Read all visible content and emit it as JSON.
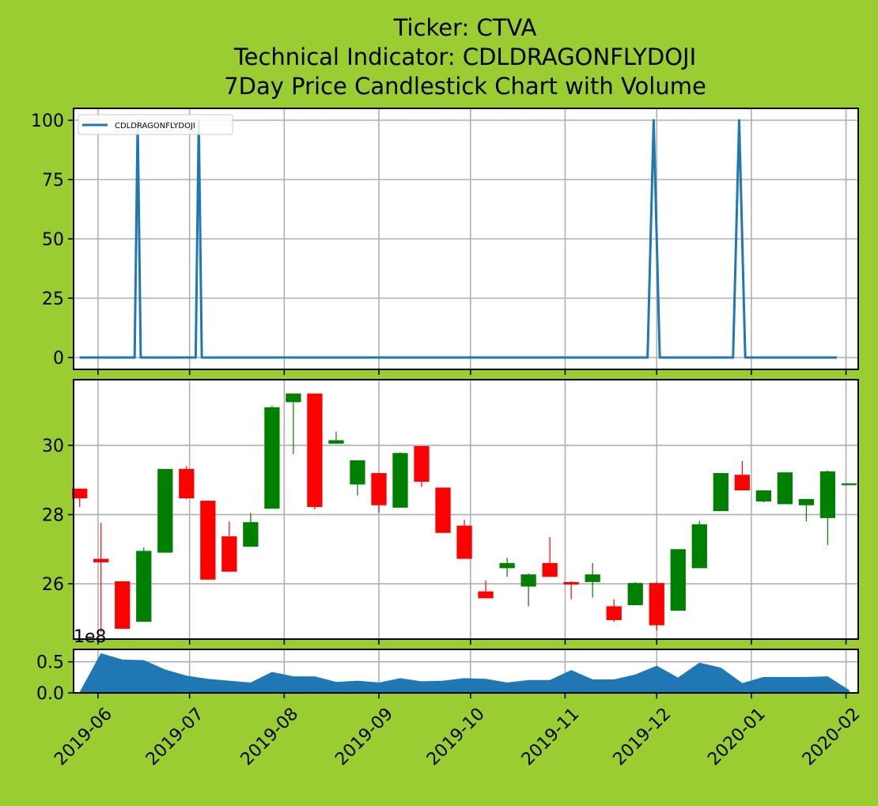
{
  "chart_data": {
    "title_lines": [
      "Ticker: CTVA",
      "Technical Indicator: CDLDRAGONFLYDOJI",
      "7Day Price Candlestick Chart with Volume"
    ],
    "background_color": "#9acd32",
    "x_axis": {
      "type": "date",
      "range": [
        "2019-05-24",
        "2020-02-05"
      ],
      "ticks": [
        "2019-06",
        "2019-07",
        "2019-08",
        "2019-09",
        "2019-10",
        "2019-11",
        "2019-12",
        "2020-01",
        "2020-02"
      ],
      "tick_label_rotation": 45,
      "grid": true
    },
    "panels": [
      {
        "type": "line",
        "name": "indicator",
        "ylim": [
          -5,
          105
        ],
        "yticks": [
          0,
          25,
          50,
          75,
          100
        ],
        "legend": {
          "label": "CDLDRAGONFLYDOJI",
          "position": "top-left"
        },
        "series": [
          {
            "name": "CDLDRAGONFLYDOJI",
            "color": "#1f77b4",
            "points": [
              [
                "2019-05-26",
                0
              ],
              [
                "2019-06-13",
                0
              ],
              [
                "2019-06-14",
                100
              ],
              [
                "2019-06-15",
                0
              ],
              [
                "2019-07-03",
                0
              ],
              [
                "2019-07-04",
                100
              ],
              [
                "2019-07-05",
                0
              ],
              [
                "2019-11-28",
                0
              ],
              [
                "2019-11-30",
                100
              ],
              [
                "2019-12-02",
                0
              ],
              [
                "2019-12-26",
                0
              ],
              [
                "2019-12-28",
                100
              ],
              [
                "2019-12-30",
                0
              ],
              [
                "2020-01-29",
                0
              ]
            ]
          }
        ]
      },
      {
        "type": "candlestick",
        "name": "price",
        "ylim": [
          24.4,
          31.9
        ],
        "yticks": [
          26,
          28,
          30
        ],
        "up_color": "#008000",
        "down_color": "#ff0000",
        "candles": [
          {
            "date": "2019-05-26",
            "open": 28.75,
            "high": 28.75,
            "low": 28.22,
            "close": 28.47
          },
          {
            "date": "2019-06-02",
            "open": 26.72,
            "high": 27.76,
            "low": 24.6,
            "close": 26.62
          },
          {
            "date": "2019-06-09",
            "open": 26.07,
            "high": 26.07,
            "low": 24.7,
            "close": 24.7
          },
          {
            "date": "2019-06-16",
            "open": 24.9,
            "high": 27.05,
            "low": 24.9,
            "close": 26.95
          },
          {
            "date": "2019-06-23",
            "open": 26.9,
            "high": 29.32,
            "low": 26.9,
            "close": 29.32
          },
          {
            "date": "2019-06-30",
            "open": 29.32,
            "high": 29.4,
            "low": 28.45,
            "close": 28.47
          },
          {
            "date": "2019-07-07",
            "open": 28.4,
            "high": 28.4,
            "low": 26.12,
            "close": 26.12
          },
          {
            "date": "2019-07-14",
            "open": 27.37,
            "high": 27.8,
            "low": 26.35,
            "close": 26.35
          },
          {
            "date": "2019-07-21",
            "open": 27.07,
            "high": 28.05,
            "low": 27.07,
            "close": 27.78
          },
          {
            "date": "2019-07-28",
            "open": 28.17,
            "high": 31.15,
            "low": 28.17,
            "close": 31.1
          },
          {
            "date": "2019-08-04",
            "open": 31.25,
            "high": 31.5,
            "low": 29.75,
            "close": 31.5
          },
          {
            "date": "2019-08-11",
            "open": 31.5,
            "high": 31.5,
            "low": 28.15,
            "close": 28.22
          },
          {
            "date": "2019-08-18",
            "open": 30.05,
            "high": 30.4,
            "low": 30.05,
            "close": 30.15
          },
          {
            "date": "2019-08-25",
            "open": 28.87,
            "high": 29.57,
            "low": 28.55,
            "close": 29.57
          },
          {
            "date": "2019-09-01",
            "open": 29.2,
            "high": 29.2,
            "low": 28.05,
            "close": 28.27
          },
          {
            "date": "2019-09-08",
            "open": 28.2,
            "high": 29.8,
            "low": 28.2,
            "close": 29.78
          },
          {
            "date": "2019-09-15",
            "open": 29.98,
            "high": 29.98,
            "low": 28.8,
            "close": 28.95
          },
          {
            "date": "2019-09-22",
            "open": 28.78,
            "high": 28.78,
            "low": 27.47,
            "close": 27.47
          },
          {
            "date": "2019-09-29",
            "open": 27.68,
            "high": 27.85,
            "low": 26.72,
            "close": 26.72
          },
          {
            "date": "2019-10-06",
            "open": 25.78,
            "high": 26.1,
            "low": 25.58,
            "close": 25.58
          },
          {
            "date": "2019-10-13",
            "open": 26.45,
            "high": 26.75,
            "low": 26.2,
            "close": 26.6
          },
          {
            "date": "2019-10-20",
            "open": 25.92,
            "high": 26.3,
            "low": 25.35,
            "close": 26.27
          },
          {
            "date": "2019-10-27",
            "open": 26.6,
            "high": 27.35,
            "low": 26.2,
            "close": 26.2
          },
          {
            "date": "2019-11-03",
            "open": 26.05,
            "high": 26.07,
            "low": 25.55,
            "close": 25.98
          },
          {
            "date": "2019-11-10",
            "open": 26.05,
            "high": 26.6,
            "low": 25.6,
            "close": 26.27
          },
          {
            "date": "2019-11-17",
            "open": 25.35,
            "high": 25.55,
            "low": 24.9,
            "close": 24.95
          },
          {
            "date": "2019-11-24",
            "open": 25.38,
            "high": 26.05,
            "low": 25.38,
            "close": 26.02
          },
          {
            "date": "2019-12-01",
            "open": 26.02,
            "high": 26.05,
            "low": 24.65,
            "close": 24.8
          },
          {
            "date": "2019-12-08",
            "open": 25.22,
            "high": 27.0,
            "low": 25.22,
            "close": 27.0
          },
          {
            "date": "2019-12-15",
            "open": 26.45,
            "high": 27.82,
            "low": 26.45,
            "close": 27.72
          },
          {
            "date": "2019-12-22",
            "open": 28.1,
            "high": 29.2,
            "low": 28.1,
            "close": 29.2
          },
          {
            "date": "2019-12-29",
            "open": 29.15,
            "high": 29.55,
            "low": 28.7,
            "close": 28.7
          },
          {
            "date": "2020-01-05",
            "open": 28.38,
            "high": 28.7,
            "low": 28.35,
            "close": 28.7
          },
          {
            "date": "2020-01-12",
            "open": 28.3,
            "high": 29.22,
            "low": 28.3,
            "close": 29.22
          },
          {
            "date": "2020-01-19",
            "open": 28.27,
            "high": 28.45,
            "low": 27.8,
            "close": 28.45
          },
          {
            "date": "2020-01-26",
            "open": 27.9,
            "high": 29.27,
            "low": 27.12,
            "close": 29.25
          },
          {
            "date": "2020-02-02",
            "open": 28.85,
            "high": 28.9,
            "low": 28.85,
            "close": 28.9
          }
        ]
      },
      {
        "type": "area",
        "name": "volume",
        "ylim": [
          0,
          0.7
        ],
        "yticks": [
          0.0,
          0.5
        ],
        "ytick_labels": [
          "0.0",
          "0.5"
        ],
        "offset_text": "1e8",
        "color": "#1f77b4",
        "points": [
          [
            "2019-05-26",
            0.0
          ],
          [
            "2019-06-02",
            0.63
          ],
          [
            "2019-06-09",
            0.53
          ],
          [
            "2019-06-16",
            0.52
          ],
          [
            "2019-06-23",
            0.37
          ],
          [
            "2019-06-30",
            0.27
          ],
          [
            "2019-07-07",
            0.22
          ],
          [
            "2019-07-14",
            0.19
          ],
          [
            "2019-07-21",
            0.16
          ],
          [
            "2019-07-28",
            0.33
          ],
          [
            "2019-08-04",
            0.26
          ],
          [
            "2019-08-11",
            0.26
          ],
          [
            "2019-08-18",
            0.17
          ],
          [
            "2019-08-25",
            0.19
          ],
          [
            "2019-09-01",
            0.16
          ],
          [
            "2019-09-08",
            0.23
          ],
          [
            "2019-09-15",
            0.18
          ],
          [
            "2019-09-22",
            0.19
          ],
          [
            "2019-09-29",
            0.23
          ],
          [
            "2019-10-06",
            0.22
          ],
          [
            "2019-10-13",
            0.16
          ],
          [
            "2019-10-20",
            0.2
          ],
          [
            "2019-10-27",
            0.2
          ],
          [
            "2019-11-03",
            0.36
          ],
          [
            "2019-11-10",
            0.21
          ],
          [
            "2019-11-17",
            0.21
          ],
          [
            "2019-11-24",
            0.29
          ],
          [
            "2019-12-01",
            0.43
          ],
          [
            "2019-12-08",
            0.24
          ],
          [
            "2019-12-15",
            0.48
          ],
          [
            "2019-12-22",
            0.4
          ],
          [
            "2019-12-29",
            0.15
          ],
          [
            "2020-01-05",
            0.25
          ],
          [
            "2020-01-12",
            0.25
          ],
          [
            "2020-01-19",
            0.25
          ],
          [
            "2020-01-26",
            0.26
          ],
          [
            "2020-02-02",
            0.04
          ]
        ]
      }
    ]
  }
}
